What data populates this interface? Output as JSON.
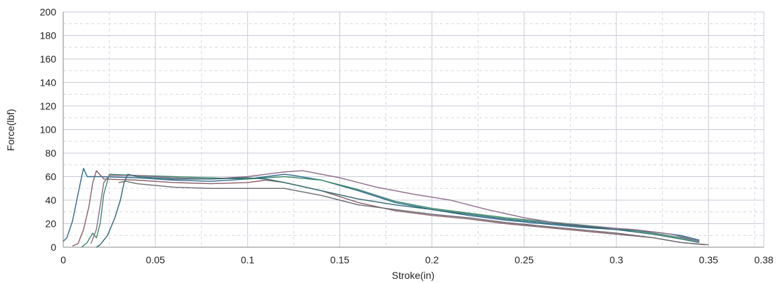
{
  "chart_data": {
    "type": "line",
    "title": "",
    "xlabel": "Stroke(in)",
    "ylabel": "Force(lbf)",
    "xlim": [
      0,
      0.38
    ],
    "ylim": [
      0,
      200
    ],
    "grid": true,
    "legend": "none",
    "x_ticks": [
      "0",
      "0.05",
      "0.1",
      "0.15",
      "0.2",
      "0.25",
      "0.3",
      "0.35",
      "0.38"
    ],
    "y_ticks": [
      "0",
      "20",
      "40",
      "60",
      "80",
      "100",
      "120",
      "140",
      "160",
      "180",
      "200"
    ],
    "colors": {
      "major_grid": "#c9ccd8",
      "minor_grid": "#d6d8e0",
      "axis": "#888888"
    },
    "series": [
      {
        "color": "#2f6a8e",
        "x": [
          0,
          0.002,
          0.005,
          0.008,
          0.01,
          0.011,
          0.013,
          0.02,
          0.04,
          0.06,
          0.08,
          0.1,
          0.12,
          0.125,
          0.14,
          0.16,
          0.18,
          0.2,
          0.22,
          0.24,
          0.26,
          0.28,
          0.3,
          0.32,
          0.335,
          0.345
        ],
        "y": [
          5,
          8,
          22,
          45,
          60,
          67,
          60,
          60,
          59,
          57,
          56,
          58,
          62,
          61,
          57,
          48,
          38,
          32,
          27,
          23,
          20,
          17,
          15,
          13,
          10,
          6
        ]
      },
      {
        "color": "#8a5f6a",
        "x": [
          0.005,
          0.008,
          0.011,
          0.014,
          0.016,
          0.018,
          0.022,
          0.04,
          0.06,
          0.08,
          0.1,
          0.11,
          0.12,
          0.14,
          0.16,
          0.18,
          0.2,
          0.22,
          0.24,
          0.26,
          0.28,
          0.3,
          0.32,
          0.335,
          0.348
        ],
        "y": [
          1,
          3,
          15,
          35,
          55,
          65,
          58,
          57,
          55,
          54,
          55,
          57,
          55,
          48,
          38,
          31,
          27,
          24,
          20,
          17,
          14,
          11,
          8,
          4,
          2
        ]
      },
      {
        "color": "#3b8a6a",
        "x": [
          0.01,
          0.013,
          0.016,
          0.018,
          0.02,
          0.022,
          0.025,
          0.04,
          0.06,
          0.08,
          0.1,
          0.12,
          0.14,
          0.16,
          0.18,
          0.2,
          0.22,
          0.24,
          0.26,
          0.28,
          0.3,
          0.32,
          0.335,
          0.345
        ],
        "y": [
          0,
          4,
          12,
          8,
          20,
          45,
          62,
          61,
          60,
          59,
          58,
          60,
          57,
          49,
          39,
          33,
          29,
          25,
          22,
          19,
          16,
          12,
          8,
          5
        ]
      },
      {
        "color": "#8d6a8a",
        "x": [
          0.015,
          0.018,
          0.02,
          0.022,
          0.025,
          0.04,
          0.06,
          0.08,
          0.1,
          0.12,
          0.13,
          0.15,
          0.17,
          0.19,
          0.21,
          0.23,
          0.25,
          0.27,
          0.29,
          0.31,
          0.33,
          0.345
        ],
        "y": [
          3,
          15,
          35,
          55,
          61,
          61,
          59,
          58,
          60,
          64,
          65,
          59,
          51,
          45,
          40,
          32,
          25,
          20,
          17,
          15,
          11,
          5
        ]
      },
      {
        "color": "#2e6a6e",
        "x": [
          0.018,
          0.02,
          0.024,
          0.028,
          0.031,
          0.033,
          0.035,
          0.04,
          0.06,
          0.08,
          0.1,
          0.11,
          0.12,
          0.14,
          0.16,
          0.18,
          0.2,
          0.22,
          0.24,
          0.26,
          0.28,
          0.3,
          0.32,
          0.335,
          0.345
        ],
        "y": [
          0,
          2,
          10,
          25,
          40,
          55,
          62,
          60,
          58,
          58,
          59,
          58,
          55,
          48,
          41,
          36,
          32,
          28,
          24,
          21,
          18,
          15,
          11,
          7,
          4
        ]
      },
      {
        "color": "#6a6a72",
        "x": [
          0.03,
          0.034,
          0.04,
          0.06,
          0.08,
          0.1,
          0.12,
          0.14,
          0.16,
          0.18,
          0.2,
          0.22,
          0.24,
          0.26,
          0.28,
          0.3,
          0.32,
          0.335,
          0.35
        ],
        "y": [
          55,
          56,
          54,
          51,
          50,
          50,
          50,
          44,
          36,
          32,
          28,
          25,
          21,
          18,
          15,
          12,
          8,
          4,
          2
        ]
      }
    ]
  }
}
